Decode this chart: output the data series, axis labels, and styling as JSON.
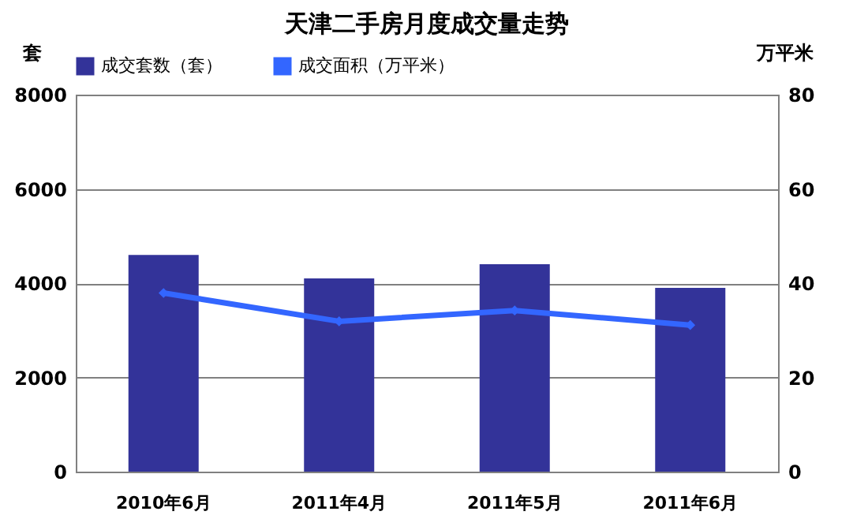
{
  "chart_data": {
    "type": "bar",
    "title": "天津二手房月度成交量走势",
    "ylabel": "套",
    "y2label": "万平米",
    "categories": [
      "2010年6月",
      "2011年4月",
      "2011年5月",
      "2011年6月"
    ],
    "series": [
      {
        "name": "成交套数（套）",
        "color": "#333399",
        "values": [
          4600,
          4100,
          4400,
          3900
        ]
      },
      {
        "name": "成交面积（万平米）",
        "type": "line",
        "axis": "y2",
        "color": "#3366ff",
        "marker": "diamond",
        "line_style": "solid",
        "values": [
          37.9,
          31.9,
          34.2,
          31.1
        ]
      }
    ],
    "ylim": [
      0,
      8000
    ],
    "yticks": [
      0,
      2000,
      4000,
      6000,
      8000
    ],
    "y2lim": [
      0,
      80
    ],
    "y2ticks": [
      0,
      20,
      40,
      60,
      80
    ],
    "grid": "y",
    "legend": "top"
  }
}
